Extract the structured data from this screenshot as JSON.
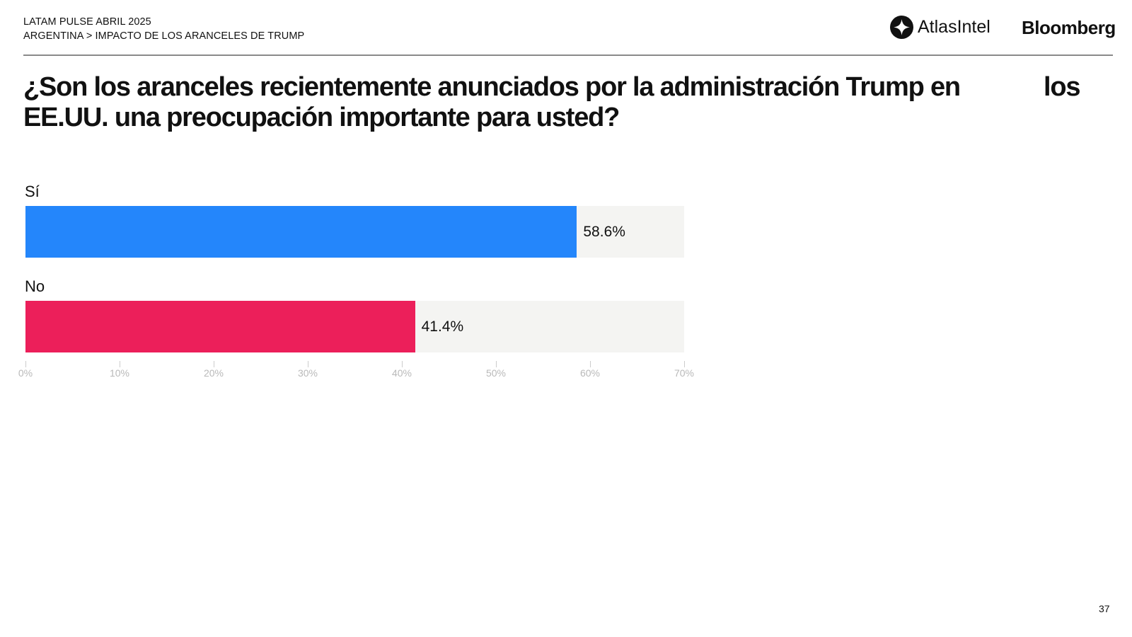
{
  "header": {
    "line1": "LATAM PULSE ABRIL 2025",
    "breadcrumb": "ARGENTINA > IMPACTO DE LOS ARANCELES DE TRUMP",
    "logo_atlas": "AtlasIntel",
    "logo_bloomberg": "Bloomberg"
  },
  "title": {
    "line1": "¿Son los aranceles recientemente anunciados por la administración Trump en",
    "line1_tail": "los",
    "line2": "EE.UU. una preocupación importante para usted?"
  },
  "chart_data": {
    "type": "bar",
    "orientation": "horizontal",
    "categories": [
      "Sí",
      "No"
    ],
    "values": [
      58.6,
      41.4
    ],
    "value_labels": [
      "58.6%",
      "41.4%"
    ],
    "colors": [
      "#2486fb",
      "#ec1f5a"
    ],
    "xlim": [
      0,
      70
    ],
    "xticks": [
      "0%",
      "10%",
      "20%",
      "30%",
      "40%",
      "50%",
      "60%",
      "70%"
    ],
    "title": "",
    "xlabel": "",
    "ylabel": ""
  },
  "page_number": "37"
}
